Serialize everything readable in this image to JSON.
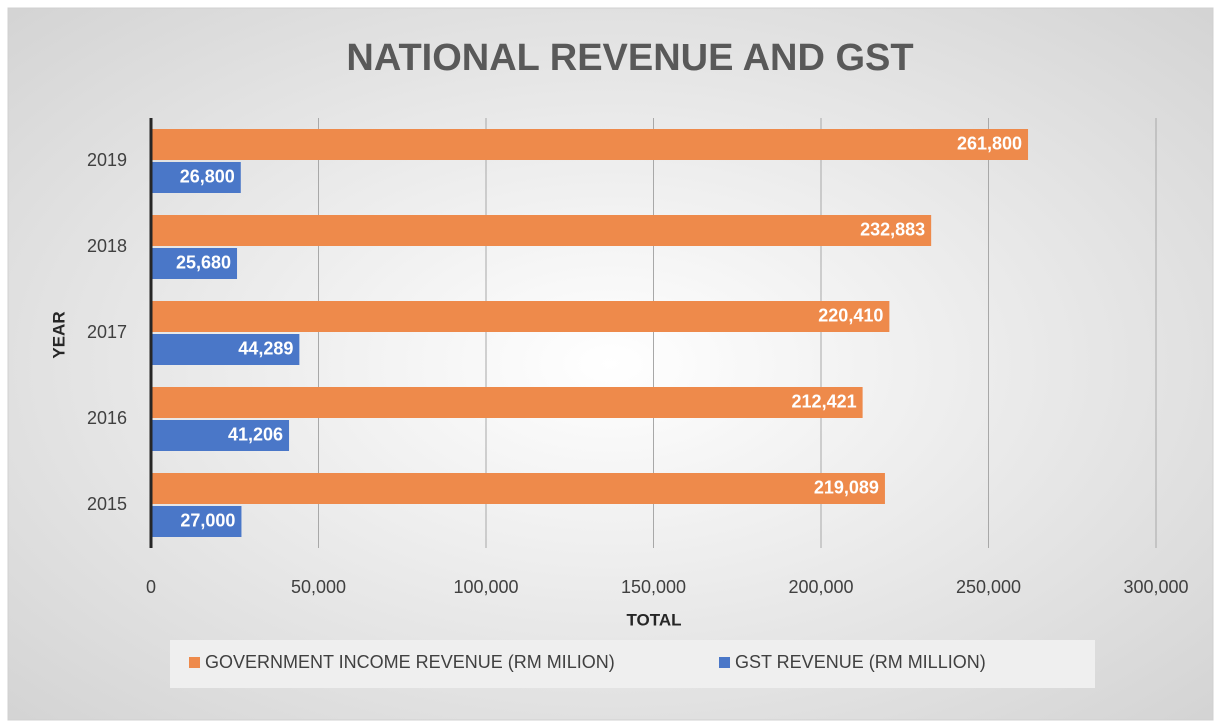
{
  "chart_data": {
    "type": "hbar",
    "title": "NATIONAL REVENUE  AND  GST",
    "xlabel": "TOTAL",
    "ylabel": "YEAR",
    "categories": [
      "2015",
      "2016",
      "2017",
      "2018",
      "2019"
    ],
    "series": [
      {
        "name": "GOVERNMENT INCOME REVENUE (RM MILION)",
        "color": "#ee8a4b",
        "values": [
          219089,
          212421,
          220410,
          232883,
          261800
        ],
        "value_labels": [
          "219,089",
          "212,421",
          "220,410",
          "232,883",
          "261,800"
        ]
      },
      {
        "name": "GST REVENUE (RM MILLION)",
        "color": "#4a77c8",
        "values": [
          27000,
          41206,
          44289,
          25680,
          26800
        ],
        "value_labels": [
          "27,000",
          "41,206",
          "44,289",
          "25,680",
          "26,800"
        ]
      }
    ],
    "xlim": [
      0,
      300000
    ],
    "xticks": [
      0,
      {
        "value": 50000,
        "label": "50,000"
      },
      {
        "value": 100000,
        "label": "100,000"
      },
      {
        "value": 150000,
        "label": "150,000"
      },
      {
        "value": 200000,
        "label": "200,000"
      },
      {
        "value": 250000,
        "label": "250,000"
      },
      {
        "value": 300000,
        "label": "300,000"
      }
    ],
    "grid": true,
    "legend": "bottom"
  }
}
